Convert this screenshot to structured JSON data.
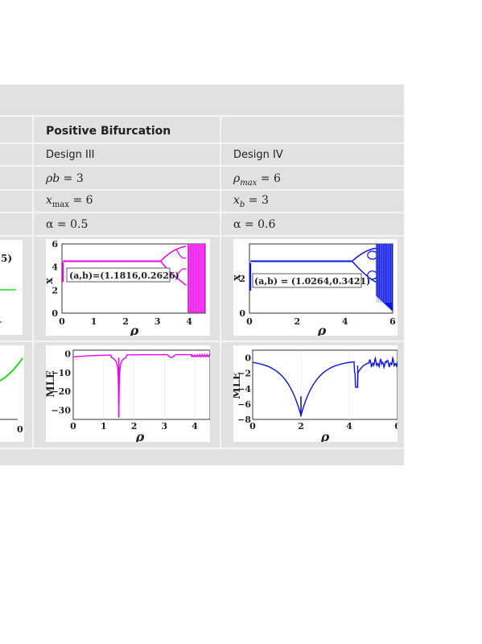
{
  "table": {
    "header": {
      "col2": "Positive Bifurcation"
    },
    "rows": {
      "design": [
        "Design III",
        "Design IV"
      ],
      "param_c2": {
        "var": "ρb",
        "sub": "",
        "eq": " = 3"
      },
      "param_c3": {
        "var": "ρ",
        "sub": "max",
        "eq": " = 6"
      },
      "x_c2": {
        "var": "x",
        "sub": "max",
        "eq": " = 6"
      },
      "x_c3": {
        "var": "x",
        "sub": "b",
        "eq": " = 3"
      },
      "alpha_c2": "α = 0.5",
      "alpha_c3": "α = 0.6"
    },
    "partial_left": {
      "top_label": "5)",
      "bottom_tick": "0"
    }
  },
  "plots": {
    "bif_c2": {
      "annotation": "(a,b)=(1.1816,0.2626)",
      "ylabel": "x",
      "xlabel": "ρ",
      "xticks": [
        "0",
        "1",
        "2",
        "3",
        "4"
      ],
      "yticks": [
        "0",
        "2",
        "4",
        "6"
      ],
      "color": "#ee00ee",
      "xlim": [
        0,
        4.5
      ],
      "ylim": [
        0,
        6
      ]
    },
    "bif_c3": {
      "annotation": "(a,b) = (1.0264,0.3421)",
      "ylabel": "x",
      "xlabel": "ρ",
      "xticks": [
        "0",
        "2",
        "4",
        "6"
      ],
      "yticks": [
        "0",
        "2"
      ],
      "color": "#0a14e6",
      "xlim": [
        0,
        6
      ],
      "ylim": [
        0,
        4
      ]
    },
    "mle_c2": {
      "ylabel": "MLE",
      "xlabel": "ρ",
      "xticks": [
        "0",
        "1",
        "2",
        "3",
        "4"
      ],
      "yticks": [
        "0",
        "−10",
        "−20",
        "−30"
      ],
      "color": "#ee00ee",
      "xlim": [
        0,
        4.5
      ],
      "ylim": [
        -35,
        2
      ]
    },
    "mle_c3": {
      "ylabel": "MLE",
      "xlabel": "ρ",
      "xticks": [
        "0",
        "2",
        "4",
        "6"
      ],
      "yticks": [
        "0",
        "−2",
        "−4",
        "−6",
        "−8"
      ],
      "color": "#0a14e6",
      "xlim": [
        0,
        6
      ],
      "ylim": [
        -8,
        1
      ]
    }
  }
}
